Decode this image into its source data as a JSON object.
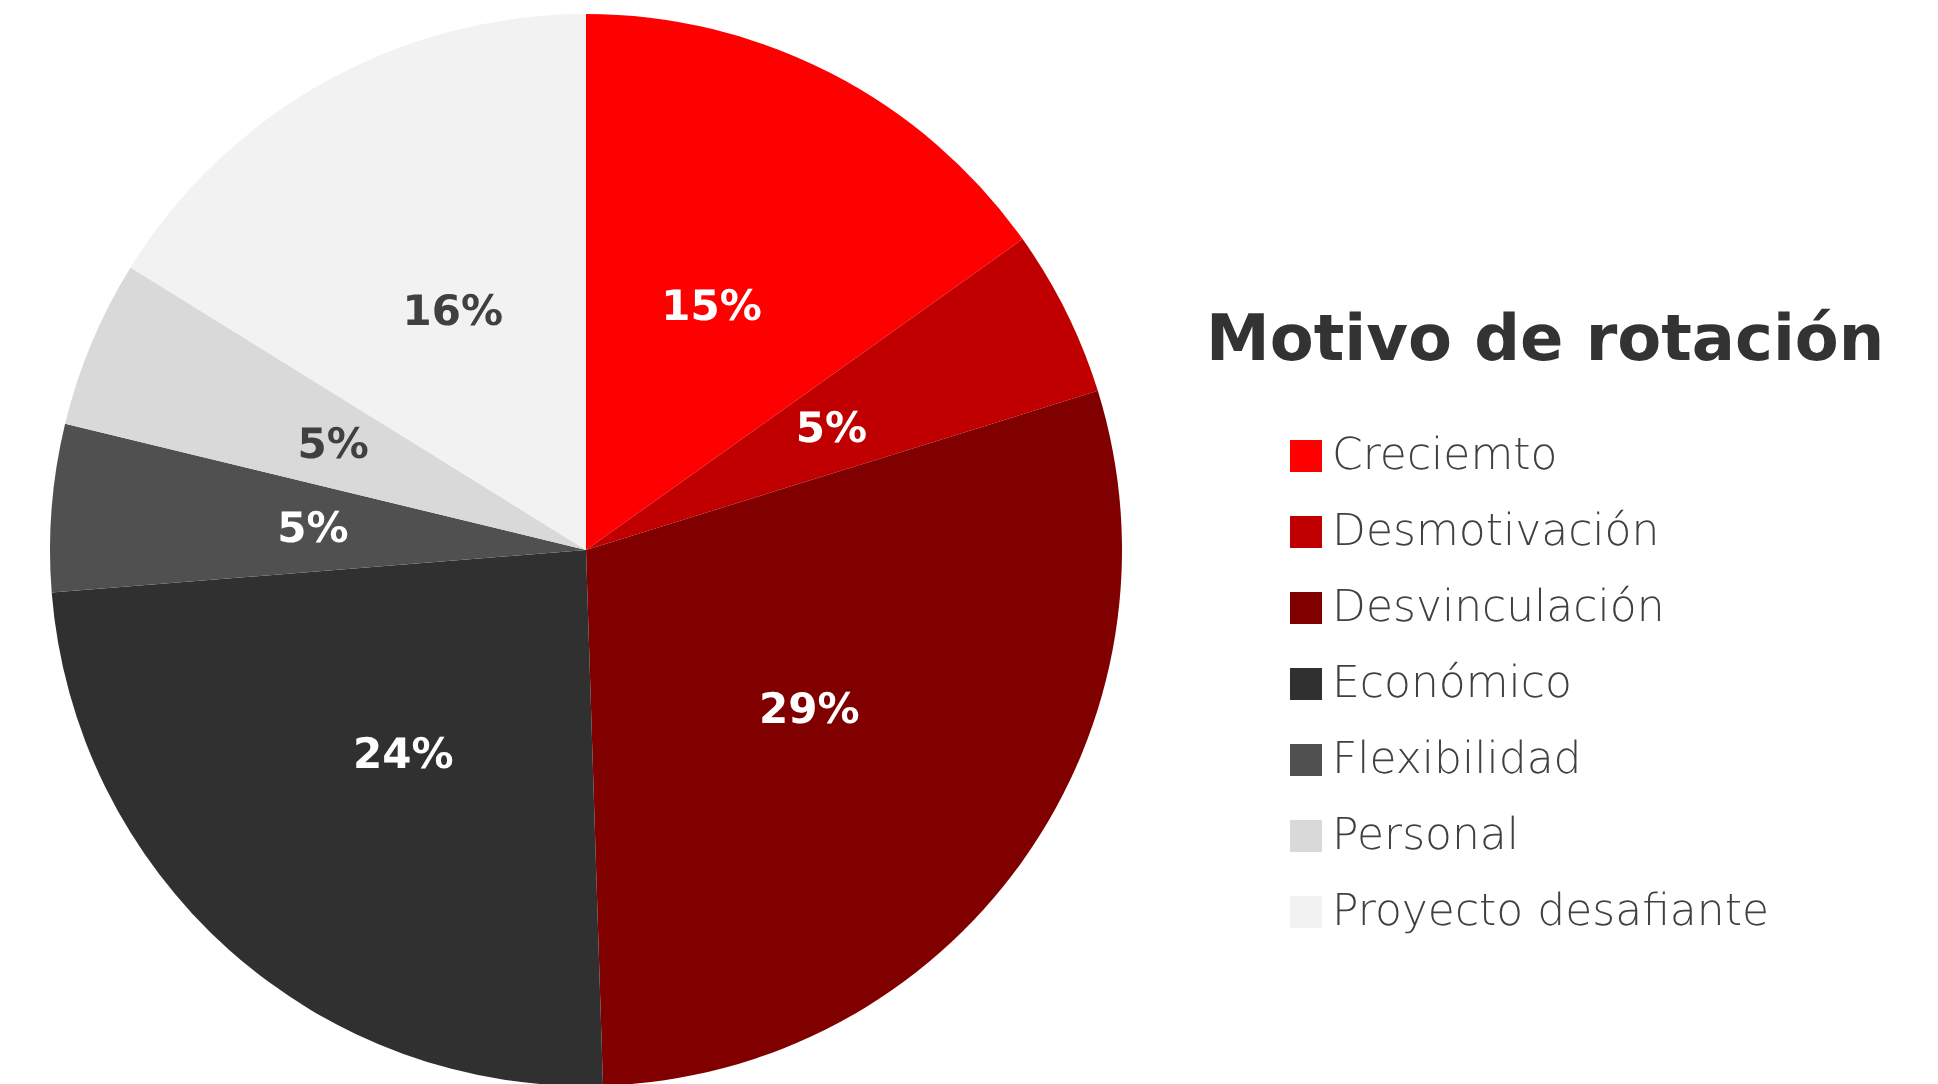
{
  "chart_data": {
    "type": "pie",
    "legend_title": "Motivo de rotación",
    "categories": [
      "Creciemto",
      "Desmotivación",
      "Desvinculación",
      "Económico",
      "Flexibilidad",
      "Personal",
      "Proyecto desafiante"
    ],
    "values": [
      15,
      5,
      29,
      24,
      5,
      5,
      16
    ],
    "colors": [
      "#ff0000",
      "#c00000",
      "#800000",
      "#303030",
      "#505050",
      "#d9d9d9",
      "#f2f2f2"
    ],
    "value_labels": [
      "15%",
      "5%",
      "29%",
      "24%",
      "5%",
      "5%",
      "16%"
    ],
    "legend": "right"
  }
}
